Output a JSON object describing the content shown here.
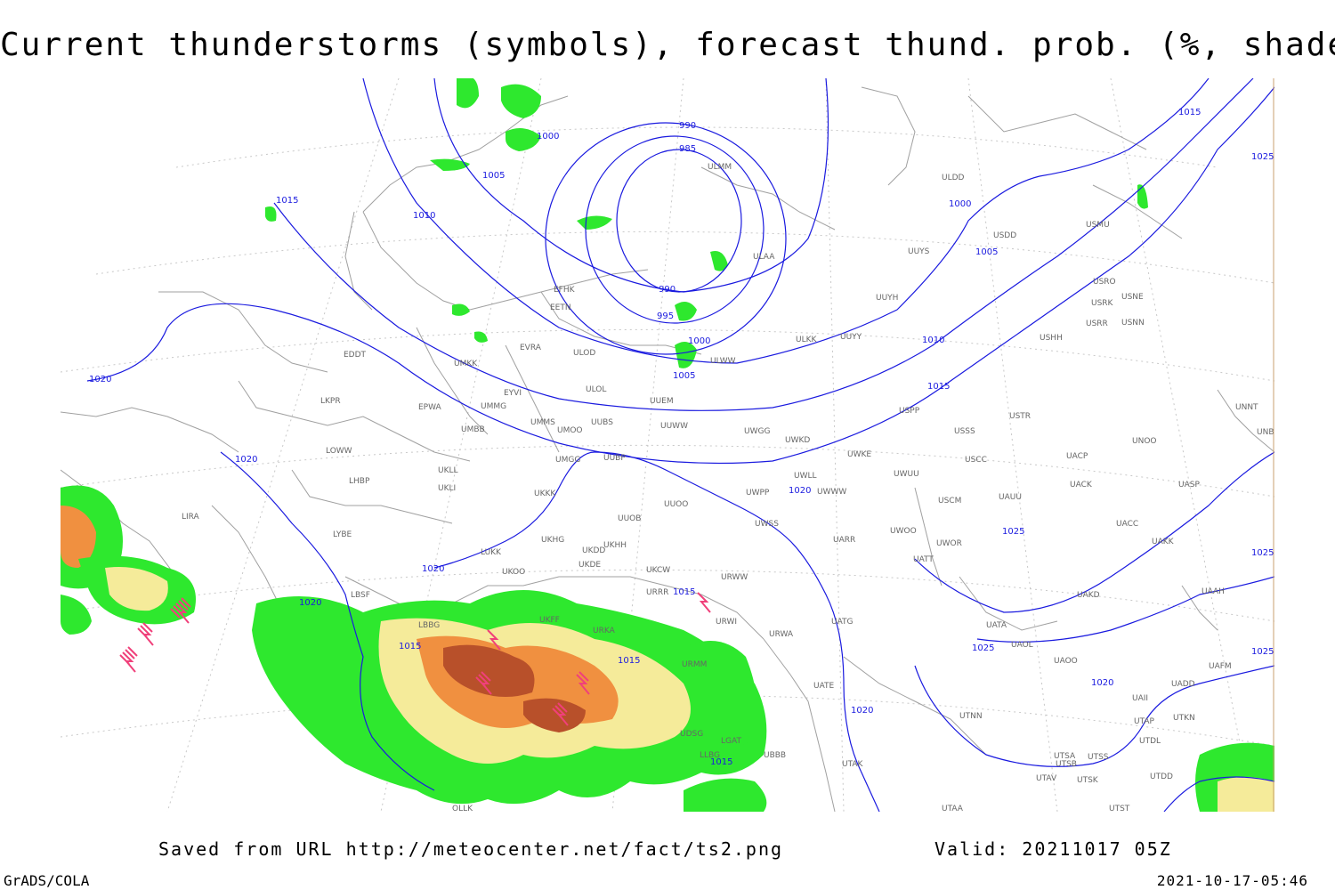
{
  "title": "Current thunderstorms (symbols), forecast thund. prob. (%, shaded)",
  "footer": {
    "saved_from": "Saved from URL http://meteocenter.net/fact/ts2.png",
    "valid": "Valid: 20211017 05Z",
    "software": "GrADS/COLA",
    "timestamp": "2021-10-17-05:46"
  },
  "colors": {
    "isobar": "#1a1adf",
    "coastline": "#a0a0a0",
    "grid": "#c8c8c8",
    "prob_low": "#2ee82e",
    "prob_mid": "#f5eb9a",
    "prob_high": "#f09040",
    "prob_max": "#b8502a",
    "storm_symbol": "#f0407a"
  },
  "isobars": [
    "985",
    "990",
    "990",
    "995",
    "1000",
    "1000",
    "1000",
    "1005",
    "1005",
    "1005",
    "1010",
    "1010",
    "1015",
    "1015",
    "1015",
    "1015",
    "1015",
    "1015",
    "1020",
    "1020",
    "1020",
    "1020",
    "1020",
    "1020",
    "1020",
    "1025",
    "1025",
    "1025",
    "1025",
    "1025",
    "1015"
  ],
  "stations": [
    "ULMM",
    "ULDD",
    "USDD",
    "USMU",
    "UUYS",
    "ULAA",
    "UUYH",
    "USRO",
    "USRK",
    "USNE",
    "USRR",
    "USNN",
    "EFHK",
    "EETN",
    "ULWW",
    "ULKK",
    "UUYY",
    "USHH",
    "UMKK",
    "EVRA",
    "ULOD",
    "ULOL",
    "UUEM",
    "EYVI",
    "UMMG",
    "EPWA",
    "UMMS",
    "UMOO",
    "UUBS",
    "UUWW",
    "UWGG",
    "UWKD",
    "USPP",
    "USSS",
    "USTR",
    "UNOO",
    "UNNT",
    "UNBB",
    "EDDT",
    "LKPR",
    "UMBB",
    "LOWW",
    "UUBP",
    "UMGG",
    "UKLL",
    "UKLI",
    "LHBP",
    "UKKK",
    "UUOO",
    "UUOB",
    "UWKE",
    "UWWW",
    "UWPP",
    "UWLL",
    "UWUU",
    "USCC",
    "UACP",
    "UACK",
    "UASP",
    "USCM",
    "UAUU",
    "UACC",
    "UAKK",
    "LIRA",
    "LYBE",
    "UKHG",
    "UKDD",
    "UKHH",
    "UKDE",
    "UWSS",
    "UARR",
    "UWOO",
    "UWOR",
    "UATT",
    "LUKK",
    "UKOO",
    "UKCW",
    "URWW",
    "URRR",
    "LBSF",
    "LBBG",
    "UKFF",
    "URKA",
    "URMM",
    "URWI",
    "URWA",
    "UATG",
    "UAKD",
    "UAAH",
    "UATA",
    "UAOL",
    "UAOO",
    "UATE",
    "UAFM",
    "UADD",
    "UAII",
    "UTAK",
    "UTNN",
    "UTKN",
    "UTAP",
    "UTDL",
    "UTSA",
    "UTSS",
    "UTSB",
    "UTAV",
    "UTSK",
    "UTDD",
    "UTAA",
    "UTST",
    "UBBB",
    "UDSG",
    "LGAT",
    "LLBG",
    "OLLK"
  ]
}
